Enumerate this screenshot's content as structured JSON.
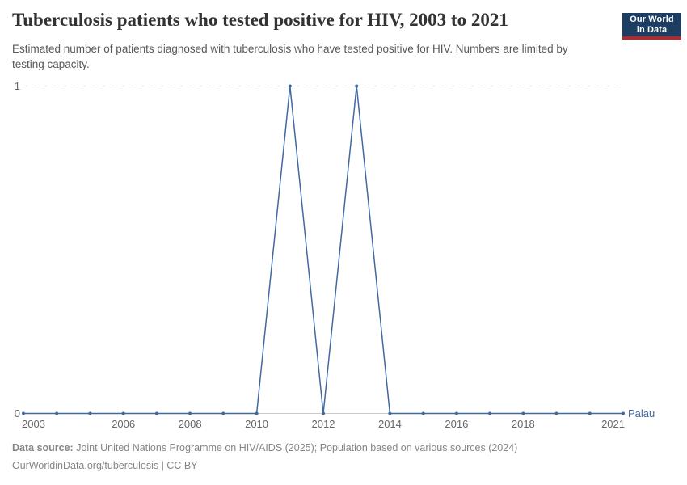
{
  "header": {
    "title": "Tuberculosis patients who tested positive for HIV, 2003 to 2021",
    "subtitle": "Estimated number of patients diagnosed with tuberculosis who have tested positive for HIV. Numbers are limited by testing capacity.",
    "logo": {
      "line1": "Our World",
      "line2": "in Data"
    }
  },
  "footer": {
    "source_label": "Data source:",
    "source_text": " Joint United Nations Programme on HIV/AIDS (2025); Population based on various sources (2024)",
    "license_text": "OurWorldinData.org/tuberculosis | CC BY"
  },
  "chart_data": {
    "type": "line",
    "title": "Tuberculosis patients who tested positive for HIV, 2003 to 2021",
    "entity": "Palau",
    "x": [
      2003,
      2004,
      2005,
      2006,
      2007,
      2008,
      2009,
      2010,
      2011,
      2012,
      2013,
      2014,
      2015,
      2016,
      2017,
      2018,
      2019,
      2020,
      2021
    ],
    "series": [
      {
        "name": "Palau",
        "values": [
          0,
          0,
          0,
          0,
          0,
          0,
          0,
          0,
          1,
          0,
          1,
          0,
          0,
          0,
          0,
          0,
          0,
          0,
          0
        ]
      }
    ],
    "x_tick_labels": [
      "2003",
      "2006",
      "2008",
      "2010",
      "2012",
      "2014",
      "2016",
      "2018",
      "2021"
    ],
    "y_ticks": [
      0,
      1
    ],
    "xlim": [
      2003,
      2021
    ],
    "ylim": [
      0,
      1
    ],
    "grid": "horizontal dashed gridline at y=1, solid axis at y=0",
    "legend_position": "end-of-line label",
    "markers": "small dots at every yearly data point"
  },
  "colors": {
    "line": "#4268a3",
    "entity_label": "#4268a3",
    "grid": "#dedede",
    "axis": "#c9c9c9",
    "tick_text": "#666666",
    "title_text": "#333333",
    "subtitle_text": "#595959",
    "footer_text": "#858585",
    "logo_background": "#1d3d63",
    "logo_underline": "#b5292b"
  }
}
